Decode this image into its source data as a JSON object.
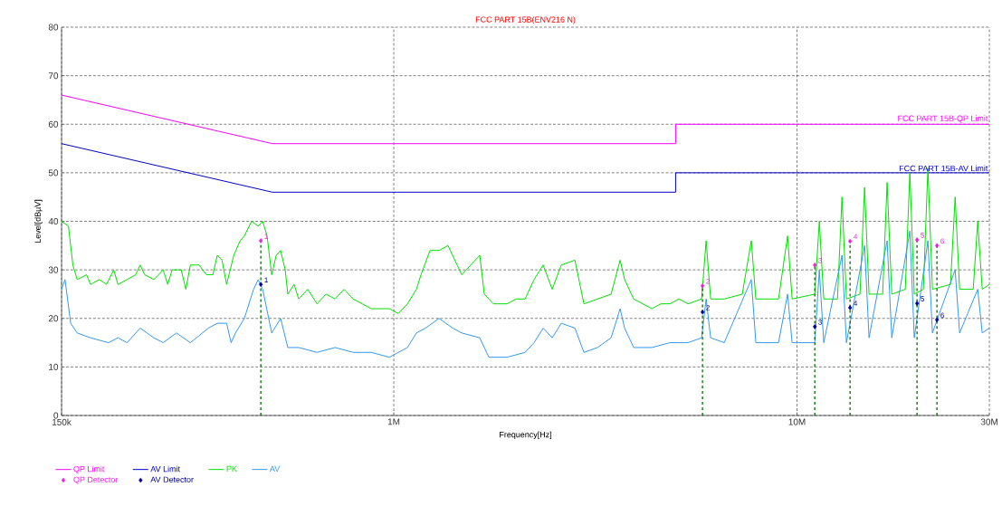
{
  "chart_data": {
    "type": "line",
    "title": "FCC PART 15B(ENV216 N)",
    "xlabel": "Frequency[Hz]",
    "ylabel": "Level[dBµV]",
    "log": "x",
    "xlim": [
      150000,
      30000000
    ],
    "ylim": [
      0,
      80
    ],
    "xticks": [
      {
        "value": 150000,
        "label": "150k"
      },
      {
        "value": 1000000,
        "label": "1M"
      },
      {
        "value": 10000000,
        "label": "10M"
      },
      {
        "value": 30000000,
        "label": "30M"
      }
    ],
    "yticks": [
      0,
      10,
      20,
      30,
      40,
      50,
      60,
      70,
      80
    ],
    "grid": true,
    "legend": "bottom",
    "marker": "none",
    "line_style": "solid",
    "annotations": [
      {
        "text": "FCC PART 15B-QP Limit",
        "x": 30000000,
        "y": 60
      },
      {
        "text": "FCC PART 15B-AV Limit",
        "x": 30000000,
        "y": 50
      },
      {
        "text": "1",
        "x": 468000,
        "y": 36
      },
      {
        "text": "2",
        "x": 5830000,
        "y": 26.7
      },
      {
        "text": "3",
        "x": 11070000,
        "y": 31
      },
      {
        "text": "4",
        "x": 13540000,
        "y": 35.9
      },
      {
        "text": "5",
        "x": 19850000,
        "y": 36.2
      },
      {
        "text": "6",
        "x": 22240000,
        "y": 35
      },
      {
        "text": "1",
        "x": 468000,
        "y": 27
      },
      {
        "text": "2",
        "x": 5830000,
        "y": 21.3
      },
      {
        "text": "3",
        "x": 11070000,
        "y": 18.3
      },
      {
        "text": "4",
        "x": 13540000,
        "y": 22.2
      },
      {
        "text": "5",
        "x": 19850000,
        "y": 23.1
      },
      {
        "text": "6",
        "x": 22240000,
        "y": 19.7
      }
    ],
    "series": [
      {
        "name": "QP Limit",
        "color": "#ff00ff",
        "x": [
          150000,
          500000,
          5000000,
          5000000,
          30000000
        ],
        "values": [
          66,
          56,
          56,
          60,
          60
        ]
      },
      {
        "name": "AV Limit",
        "color": "#0000cc",
        "x": [
          150000,
          500000,
          5000000,
          5000000,
          30000000
        ],
        "values": [
          56,
          46,
          46,
          50,
          50
        ]
      },
      {
        "name": "PK",
        "color": "#00e000",
        "x": [
          150000,
          156000,
          160000,
          164000,
          173000,
          177000,
          186000,
          194000,
          202000,
          207000,
          218000,
          229000,
          235000,
          241000,
          254000,
          268000,
          275000,
          282000,
          297000,
          305000,
          313000,
          329000,
          343000,
          356000,
          365000,
          375000,
          385000,
          401000,
          416000,
          426000,
          444000,
          461000,
          473000,
          485000,
          498000,
          511000,
          524000,
          538000,
          546000,
          566000,
          581000,
          612000,
          645000,
          679000,
          715000,
          753000,
          793000,
          835000,
          879000,
          926000,
          975000,
          1026000,
          1081000,
          1138000,
          1168000,
          1230000,
          1295000,
          1363000,
          1436000,
          1474000,
          1552000,
          1634000,
          1677000,
          1766000,
          1909000,
          2010000,
          2117000,
          2228000,
          2347000,
          2471000,
          2603000,
          2813000,
          2962000,
          3201000,
          3459000,
          3642000,
          3737000,
          3936000,
          4144000,
          4364000,
          4596000,
          4839000,
          5096000,
          5366000,
          5800000,
          5952000,
          6107000,
          6600000,
          7317000,
          7704000,
          7907000,
          9000000,
          9475000,
          9725000,
          11070000,
          11360000,
          11650000,
          12600000,
          12930000,
          13260000,
          14330000,
          14710000,
          15090000,
          16310000,
          16730000,
          17180000,
          18560000,
          19050000,
          19540000,
          20580000,
          21120000,
          21670000,
          24030000,
          24670000,
          25310000,
          27350000,
          28070000,
          28800000,
          30000000
        ],
        "values": [
          40,
          39,
          31,
          28,
          29,
          27,
          28,
          27,
          30,
          27,
          28,
          29,
          31,
          29,
          28,
          30,
          27,
          30,
          30,
          26,
          31,
          31,
          29,
          29,
          33,
          32,
          27,
          33,
          36,
          37,
          40,
          39,
          40,
          37,
          29,
          33,
          34,
          30,
          25,
          27,
          24,
          26,
          23,
          25,
          24,
          26,
          24,
          23,
          22,
          22,
          22,
          21,
          23,
          26,
          29,
          34,
          34,
          35,
          31,
          29,
          31,
          33,
          25,
          23,
          23,
          24,
          24,
          28,
          31,
          26,
          31,
          32,
          23,
          24,
          25,
          32,
          28,
          24,
          23,
          22,
          23,
          23,
          24,
          23,
          24,
          36,
          24,
          24,
          25,
          36,
          24,
          24,
          37,
          24,
          25,
          40,
          24,
          24,
          45,
          24,
          25,
          47,
          25,
          25,
          48,
          25,
          26,
          50,
          25,
          26,
          51,
          26,
          27,
          45,
          26,
          26,
          40,
          26,
          27
        ]
      },
      {
        "name": "AV",
        "color": "#3399ee",
        "x": [
          150000,
          153000,
          158000,
          164000,
          177000,
          196000,
          207000,
          218000,
          235000,
          254000,
          268000,
          289000,
          313000,
          347000,
          365000,
          385000,
          395000,
          405000,
          426000,
          449000,
          461000,
          473000,
          498000,
          524000,
          546000,
          581000,
          645000,
          715000,
          793000,
          879000,
          975000,
          1081000,
          1138000,
          1198000,
          1295000,
          1400000,
          1474000,
          1634000,
          1721000,
          1909000,
          2117000,
          2228000,
          2347000,
          2471000,
          2603000,
          2813000,
          2962000,
          3201000,
          3459000,
          3642000,
          3737000,
          3936000,
          4364000,
          4839000,
          5366000,
          5800000,
          5952000,
          6107000,
          6600000,
          7704000,
          7907000,
          9000000,
          9475000,
          9725000,
          11070000,
          11360000,
          11650000,
          12930000,
          13260000,
          14710000,
          15090000,
          16730000,
          17180000,
          19050000,
          19540000,
          21120000,
          21670000,
          24670000,
          25310000,
          28070000,
          28800000,
          30000000
        ],
        "values": [
          26,
          28,
          19,
          17,
          16,
          15,
          16,
          15,
          18,
          16,
          15,
          17,
          15,
          18,
          19,
          19,
          15,
          17,
          20,
          26,
          28,
          26,
          17,
          20,
          14,
          14,
          13,
          14,
          13,
          13,
          12,
          14,
          17,
          18,
          20,
          18,
          17,
          16,
          12,
          12,
          13,
          15,
          18,
          16,
          19,
          18,
          13,
          14,
          16,
          22,
          18,
          14,
          14,
          15,
          15,
          16,
          24,
          16,
          15,
          28,
          15,
          15,
          25,
          15,
          15,
          30,
          15,
          33,
          15,
          35,
          16,
          36,
          16,
          38,
          16,
          36,
          17,
          30,
          17,
          26,
          17,
          18
        ]
      },
      {
        "name": "QP Detector",
        "type": "lollipop",
        "color": "#ee22dd",
        "marker": "diamond",
        "line_style": "dashed",
        "x": [
          468000,
          5830000,
          11070000,
          13540000,
          19850000,
          22240000
        ],
        "values": [
          36,
          26.7,
          31,
          35.9,
          36.2,
          35
        ]
      },
      {
        "name": "AV Detector",
        "type": "scatter",
        "color": "#000099",
        "marker": "diamond",
        "x": [
          468000,
          5830000,
          11070000,
          13540000,
          19850000,
          22240000
        ],
        "values": [
          27,
          21.3,
          18.3,
          22.2,
          23.1,
          19.7
        ]
      }
    ]
  }
}
